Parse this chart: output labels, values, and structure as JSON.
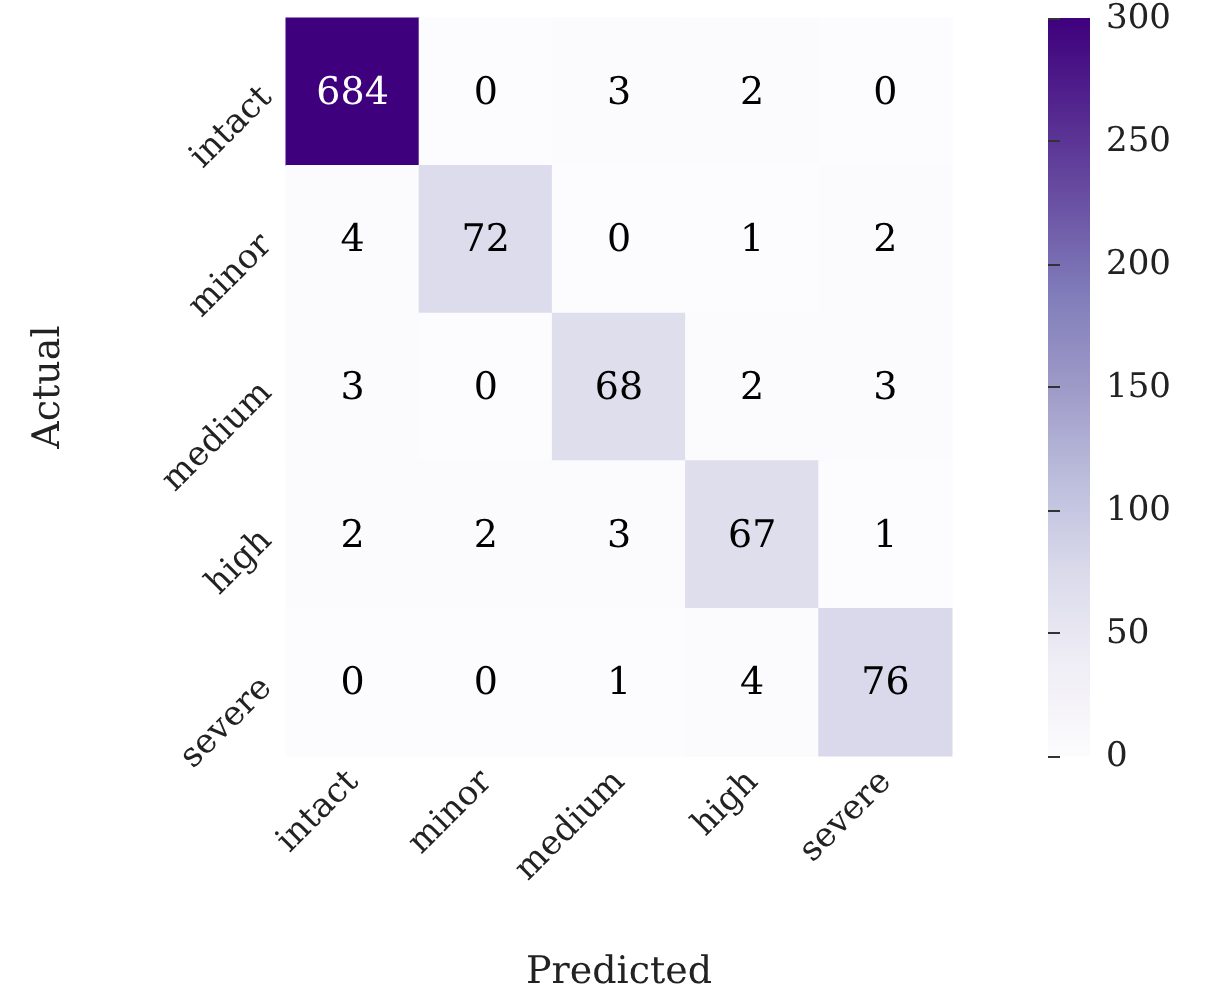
{
  "chart_data": {
    "type": "heatmap",
    "xlabel": "Predicted",
    "ylabel": "Actual",
    "categories": [
      "intact",
      "minor",
      "medium",
      "high",
      "severe"
    ],
    "y_categories": [
      "intact",
      "minor",
      "medium",
      "high",
      "severe"
    ],
    "cells": [
      [
        684,
        0,
        3,
        2,
        0
      ],
      [
        4,
        72,
        0,
        1,
        2
      ],
      [
        3,
        0,
        68,
        2,
        3
      ],
      [
        2,
        2,
        3,
        67,
        1
      ],
      [
        0,
        0,
        1,
        4,
        76
      ]
    ],
    "data_labels": true,
    "clim": [
      0,
      300
    ],
    "cticks": [
      0,
      50,
      100,
      150,
      200,
      250,
      300
    ]
  }
}
